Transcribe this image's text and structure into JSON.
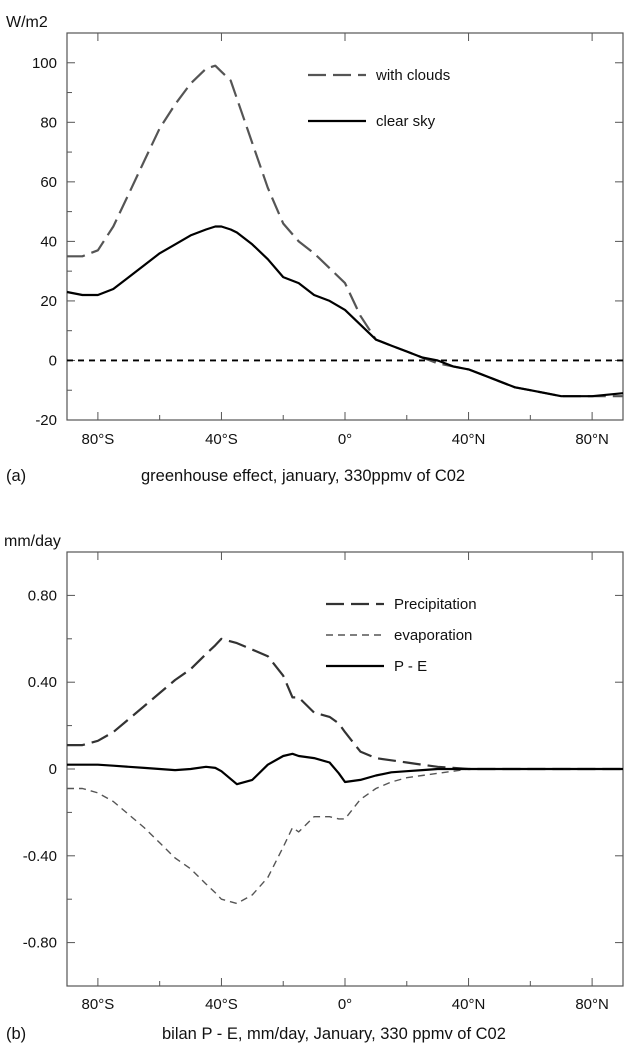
{
  "chart_data": [
    {
      "type": "line",
      "panel_letter": "(a)",
      "caption": "greenhouse effect, january, 330ppmv of C02",
      "unit_label": "W/m2",
      "x_tick_labels": [
        "80°S",
        "40°S",
        "0°",
        "40°N",
        "80°N"
      ],
      "x_tick_values": [
        -80,
        -40,
        0,
        40,
        80
      ],
      "xlim": [
        -90,
        90
      ],
      "y_tick_labels": [
        "100",
        "80",
        "60",
        "40",
        "20",
        "0",
        "-20"
      ],
      "y_tick_values": [
        100,
        80,
        60,
        40,
        20,
        0,
        -20
      ],
      "ylim": [
        -20,
        110
      ],
      "reference_line": {
        "y": 0,
        "style": "dashed"
      },
      "legend_position": "top-right",
      "series": [
        {
          "name": "with clouds",
          "style": "dashed-long",
          "color": "#555555",
          "x": [
            -90,
            -85,
            -80,
            -75,
            -70,
            -65,
            -60,
            -55,
            -50,
            -45,
            -42,
            -40,
            -37,
            -35,
            -30,
            -25,
            -20,
            -15,
            -10,
            -5,
            0,
            5,
            10,
            15,
            20,
            25,
            30,
            35,
            40,
            45,
            50,
            55,
            60,
            65,
            70,
            75,
            80,
            85,
            90
          ],
          "values": [
            35,
            35,
            37,
            45,
            56,
            67,
            78,
            86,
            93,
            98,
            99,
            97,
            94,
            88,
            73,
            58,
            46,
            40,
            36,
            31,
            26,
            15,
            7,
            5,
            3,
            1,
            -1,
            -2,
            -3,
            -5,
            -7,
            -9,
            -10,
            -11,
            -12,
            -12,
            -12,
            -12,
            -12
          ]
        },
        {
          "name": "clear sky",
          "style": "solid",
          "color": "#000000",
          "x": [
            -90,
            -85,
            -80,
            -75,
            -70,
            -65,
            -60,
            -55,
            -50,
            -45,
            -42,
            -40,
            -37,
            -35,
            -30,
            -25,
            -20,
            -15,
            -10,
            -5,
            0,
            5,
            10,
            15,
            20,
            25,
            30,
            35,
            40,
            45,
            50,
            55,
            60,
            65,
            70,
            75,
            80,
            85,
            90
          ],
          "values": [
            23,
            22,
            22,
            24,
            28,
            32,
            36,
            39,
            42,
            44,
            45,
            45,
            44,
            43,
            39,
            34,
            28,
            26,
            22,
            20,
            17,
            12,
            7,
            5,
            3,
            1,
            0,
            -2,
            -3,
            -5,
            -7,
            -9,
            -10,
            -11,
            -12,
            -12,
            -12,
            -11.5,
            -11
          ]
        }
      ]
    },
    {
      "type": "line",
      "panel_letter": "(b)",
      "caption": "bilan P - E, mm/day, January, 330 ppmv of C02",
      "unit_label": "mm/day",
      "x_tick_labels": [
        "80°S",
        "40°S",
        "0°",
        "40°N",
        "80°N"
      ],
      "x_tick_values": [
        -80,
        -40,
        0,
        40,
        80
      ],
      "xlim": [
        -90,
        90
      ],
      "y_tick_labels": [
        "0.80",
        "0.40",
        "0",
        "-0.40",
        "-0.80"
      ],
      "y_tick_values": [
        0.8,
        0.4,
        0,
        -0.4,
        -0.8
      ],
      "ylim": [
        -1.0,
        1.0
      ],
      "legend_position": "top-right",
      "series": [
        {
          "name": "Precipitation",
          "style": "dashed-long",
          "color": "#333333",
          "x": [
            -90,
            -85,
            -80,
            -75,
            -70,
            -65,
            -60,
            -55,
            -50,
            -45,
            -42,
            -40,
            -35,
            -30,
            -25,
            -20,
            -17,
            -15,
            -10,
            -5,
            -2,
            0,
            5,
            10,
            15,
            20,
            25,
            30,
            35,
            40,
            45,
            50,
            60,
            70,
            80,
            90
          ],
          "values": [
            0.11,
            0.11,
            0.13,
            0.17,
            0.23,
            0.29,
            0.35,
            0.41,
            0.46,
            0.53,
            0.57,
            0.6,
            0.58,
            0.55,
            0.52,
            0.43,
            0.33,
            0.33,
            0.26,
            0.24,
            0.21,
            0.17,
            0.08,
            0.05,
            0.04,
            0.03,
            0.02,
            0.01,
            0.005,
            0,
            0,
            0,
            0,
            0,
            0,
            0
          ]
        },
        {
          "name": "evaporation",
          "style": "dashed-short",
          "color": "#555555",
          "x": [
            -90,
            -85,
            -80,
            -75,
            -70,
            -65,
            -60,
            -55,
            -50,
            -45,
            -42,
            -40,
            -35,
            -30,
            -25,
            -20,
            -17,
            -15,
            -10,
            -5,
            -2,
            0,
            5,
            10,
            15,
            20,
            25,
            30,
            35,
            40,
            45,
            50,
            60,
            70,
            80,
            90
          ],
          "values": [
            -0.09,
            -0.09,
            -0.11,
            -0.15,
            -0.21,
            -0.27,
            -0.34,
            -0.41,
            -0.46,
            -0.53,
            -0.57,
            -0.6,
            -0.62,
            -0.58,
            -0.5,
            -0.36,
            -0.27,
            -0.29,
            -0.22,
            -0.22,
            -0.23,
            -0.23,
            -0.14,
            -0.09,
            -0.06,
            -0.04,
            -0.03,
            -0.02,
            -0.01,
            0,
            0,
            0,
            0,
            0,
            0,
            0
          ]
        },
        {
          "name": "P - E",
          "style": "solid",
          "color": "#000000",
          "x": [
            -90,
            -85,
            -80,
            -75,
            -70,
            -65,
            -60,
            -55,
            -50,
            -45,
            -42,
            -40,
            -35,
            -30,
            -25,
            -20,
            -17,
            -15,
            -10,
            -5,
            -2,
            0,
            5,
            10,
            15,
            20,
            25,
            30,
            35,
            40,
            45,
            50,
            60,
            70,
            80,
            90
          ],
          "values": [
            0.02,
            0.02,
            0.02,
            0.015,
            0.01,
            0.005,
            0,
            -0.005,
            0,
            0.01,
            0.005,
            -0.01,
            -0.07,
            -0.05,
            0.02,
            0.06,
            0.07,
            0.06,
            0.05,
            0.03,
            -0.02,
            -0.06,
            -0.05,
            -0.03,
            -0.015,
            -0.01,
            -0.005,
            0,
            0,
            0,
            0,
            0,
            0,
            0,
            0,
            0
          ]
        }
      ]
    }
  ]
}
